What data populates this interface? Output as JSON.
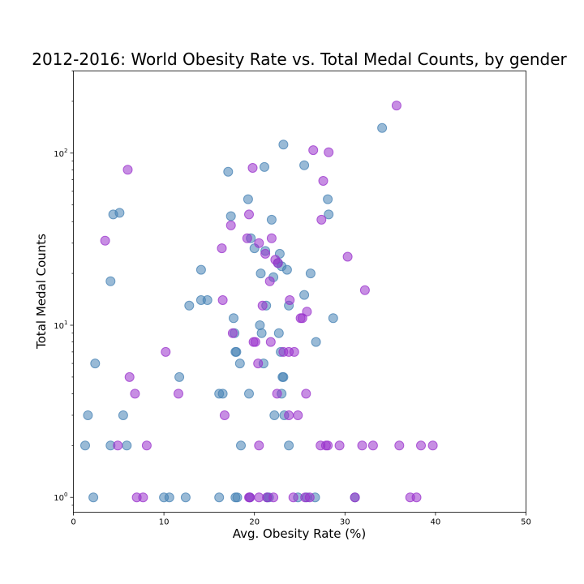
{
  "chart_data": {
    "type": "scatter",
    "title": "2012-2016: World Obesity Rate vs. Total Medal Counts, by gender",
    "xlabel": "Avg. Obesity Rate (%)",
    "ylabel": "Total Medal Counts",
    "xlim": [
      0,
      50
    ],
    "ylim": [
      0.82,
      300
    ],
    "yscale": "log",
    "grid": false,
    "x_ticks": [
      {
        "value": 0,
        "label": "0"
      },
      {
        "value": 10,
        "label": "10"
      },
      {
        "value": 20,
        "label": "20"
      },
      {
        "value": 30,
        "label": "30"
      },
      {
        "value": 40,
        "label": "40"
      },
      {
        "value": 50,
        "label": "50"
      }
    ],
    "y_ticks": [
      {
        "value": 1,
        "base": "10",
        "exp": "0"
      },
      {
        "value": 10,
        "base": "10",
        "exp": "1"
      },
      {
        "value": 100,
        "base": "10",
        "exp": "2"
      }
    ],
    "series": [
      {
        "color": "#4682b4",
        "points": [
          [
            1.3,
            2
          ],
          [
            1.6,
            3
          ],
          [
            2.2,
            1
          ],
          [
            2.4,
            6
          ],
          [
            4.1,
            18
          ],
          [
            4.1,
            2
          ],
          [
            4.4,
            44
          ],
          [
            5.1,
            45
          ],
          [
            5.5,
            3
          ],
          [
            5.9,
            2
          ],
          [
            10,
            1
          ],
          [
            10.6,
            1
          ],
          [
            11.7,
            5
          ],
          [
            12.4,
            1
          ],
          [
            12.8,
            13
          ],
          [
            14.1,
            21
          ],
          [
            14.1,
            14
          ],
          [
            14.8,
            14
          ],
          [
            16.1,
            1
          ],
          [
            16.1,
            4
          ],
          [
            16.5,
            4
          ],
          [
            17.1,
            78
          ],
          [
            17.4,
            43
          ],
          [
            17.7,
            11
          ],
          [
            17.8,
            9
          ],
          [
            17.9,
            7
          ],
          [
            18,
            7
          ],
          [
            17.9,
            1
          ],
          [
            18.1,
            1
          ],
          [
            18.4,
            6
          ],
          [
            18.5,
            2
          ],
          [
            19.3,
            54
          ],
          [
            19.4,
            4
          ],
          [
            19.5,
            1
          ],
          [
            19.6,
            32
          ],
          [
            20,
            28
          ],
          [
            20.6,
            10
          ],
          [
            20.7,
            20
          ],
          [
            20.8,
            9
          ],
          [
            21,
            6
          ],
          [
            21.1,
            83
          ],
          [
            21.2,
            27
          ],
          [
            21.3,
            13
          ],
          [
            21.4,
            1
          ],
          [
            21.6,
            1
          ],
          [
            21.9,
            41
          ],
          [
            22.1,
            19
          ],
          [
            22.2,
            3
          ],
          [
            22.6,
            23
          ],
          [
            22.8,
            26
          ],
          [
            22.7,
            9
          ],
          [
            22.9,
            7
          ],
          [
            23,
            22
          ],
          [
            23,
            4
          ],
          [
            23.1,
            5
          ],
          [
            23.2,
            112
          ],
          [
            23.2,
            5
          ],
          [
            23.3,
            3
          ],
          [
            23.6,
            21
          ],
          [
            23.8,
            13
          ],
          [
            23.8,
            2
          ],
          [
            24.8,
            1
          ],
          [
            25.5,
            85
          ],
          [
            25.5,
            15
          ],
          [
            25.8,
            1
          ],
          [
            26.2,
            20
          ],
          [
            26.7,
            1
          ],
          [
            26.8,
            8
          ],
          [
            28.1,
            54
          ],
          [
            28.2,
            44
          ],
          [
            28.7,
            11
          ],
          [
            31.1,
            1
          ],
          [
            34.1,
            140
          ]
        ]
      },
      {
        "color": "#9932cc",
        "points": [
          [
            3.5,
            31
          ],
          [
            4.9,
            2
          ],
          [
            6,
            80
          ],
          [
            6.2,
            5
          ],
          [
            6.8,
            4
          ],
          [
            7,
            1
          ],
          [
            7.7,
            1
          ],
          [
            8.1,
            2
          ],
          [
            10.2,
            7
          ],
          [
            11.6,
            4
          ],
          [
            16.4,
            28
          ],
          [
            16.5,
            14
          ],
          [
            16.7,
            3
          ],
          [
            17.4,
            38
          ],
          [
            17.6,
            9
          ],
          [
            19.2,
            32
          ],
          [
            19.4,
            44
          ],
          [
            19.4,
            1
          ],
          [
            19.5,
            1
          ],
          [
            19.8,
            82
          ],
          [
            19.9,
            8
          ],
          [
            20.1,
            8
          ],
          [
            20.4,
            6
          ],
          [
            20.5,
            30
          ],
          [
            20.5,
            2
          ],
          [
            20.5,
            1
          ],
          [
            20.9,
            13
          ],
          [
            21.2,
            26
          ],
          [
            21.4,
            1
          ],
          [
            21.7,
            18
          ],
          [
            21.8,
            8
          ],
          [
            21.9,
            32
          ],
          [
            22.1,
            1
          ],
          [
            22.3,
            24
          ],
          [
            22.5,
            4
          ],
          [
            22.6,
            23
          ],
          [
            23.2,
            7
          ],
          [
            23.8,
            7
          ],
          [
            23.8,
            3
          ],
          [
            23.9,
            14
          ],
          [
            24.3,
            1
          ],
          [
            24.4,
            7
          ],
          [
            24.8,
            3
          ],
          [
            25.1,
            11
          ],
          [
            25.3,
            11
          ],
          [
            25.6,
            1
          ],
          [
            25.7,
            4
          ],
          [
            25.8,
            12
          ],
          [
            26.1,
            1
          ],
          [
            26.5,
            104
          ],
          [
            27.3,
            2
          ],
          [
            27.4,
            41
          ],
          [
            27.6,
            69
          ],
          [
            27.9,
            2
          ],
          [
            28.1,
            2
          ],
          [
            28.2,
            101
          ],
          [
            29.4,
            2
          ],
          [
            30.3,
            25
          ],
          [
            31.1,
            1
          ],
          [
            31.9,
            2
          ],
          [
            32.2,
            16
          ],
          [
            33.1,
            2
          ],
          [
            35.7,
            189
          ],
          [
            36,
            2
          ],
          [
            37.2,
            1
          ],
          [
            37.9,
            1
          ],
          [
            38.4,
            2
          ],
          [
            39.7,
            2
          ]
        ]
      }
    ]
  }
}
